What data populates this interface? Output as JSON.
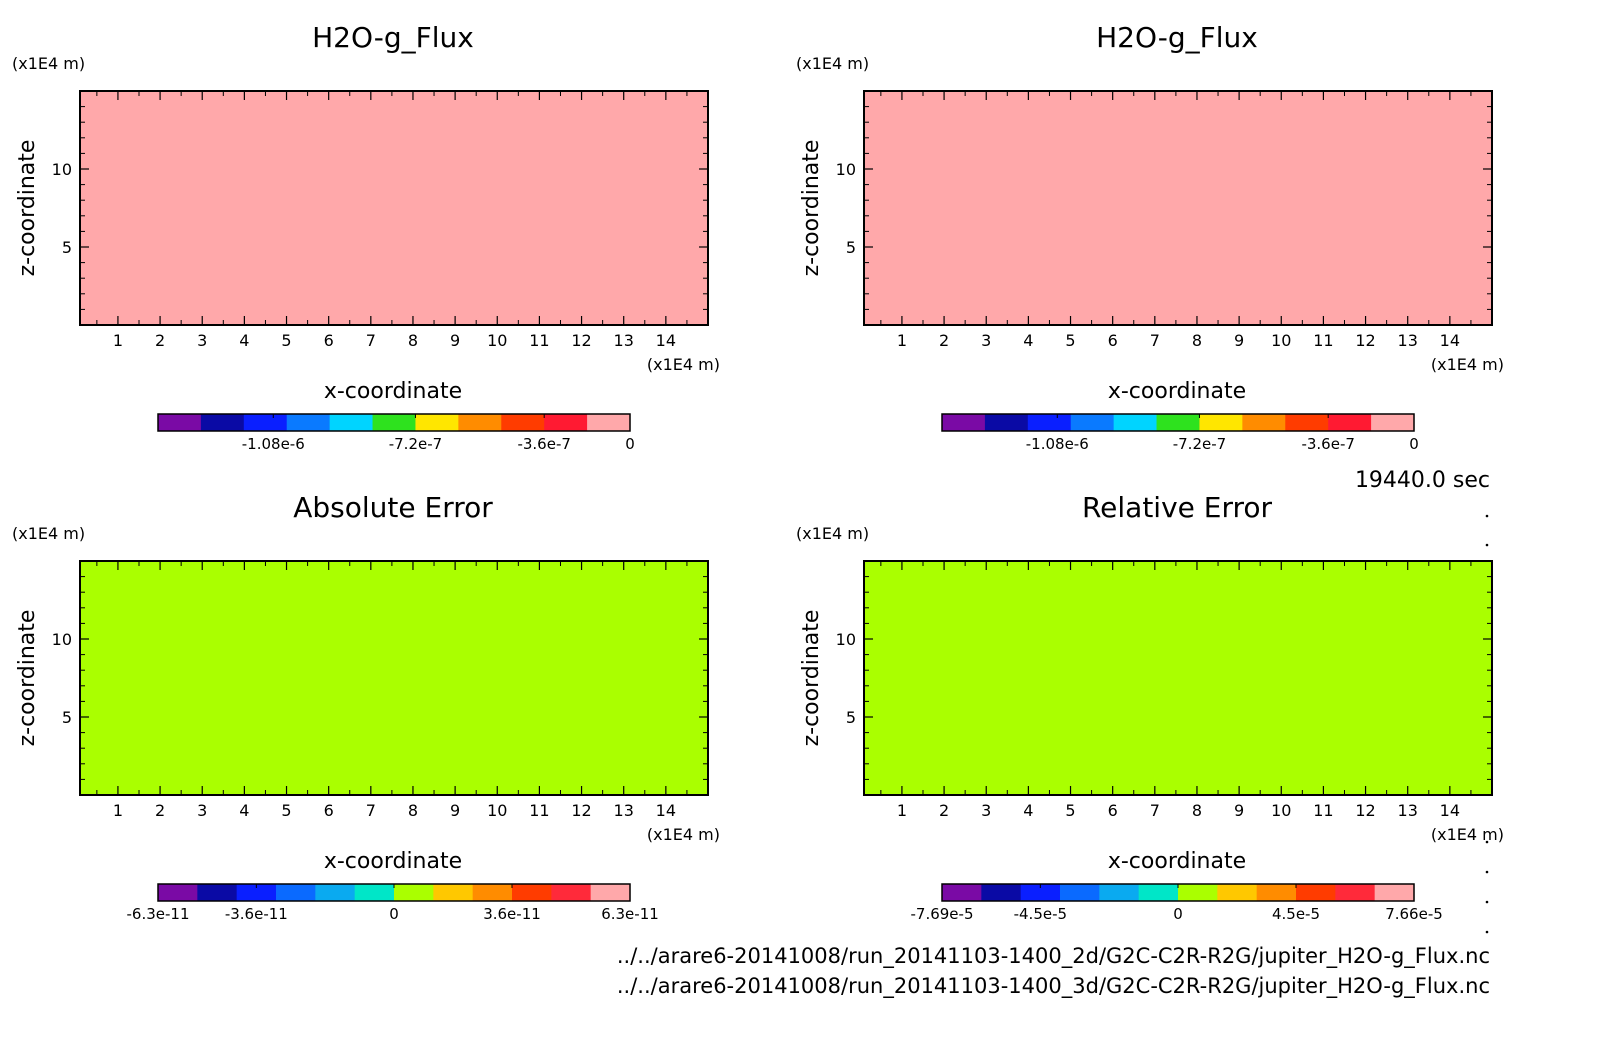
{
  "panels": [
    {
      "title": "H2O-g_Flux",
      "fill_color": "#ffa8aa",
      "y_unit": "(x1E4 m)",
      "x_unit": "(x1E4 m)",
      "ylabel": "z-coordinate",
      "xlabel": "x-coordinate",
      "colorbar": {
        "colors": [
          "#7a0aa5",
          "#0a0aa5",
          "#0a1fff",
          "#0a7aff",
          "#00d4ff",
          "#2ee21e",
          "#ffe600",
          "#ff8c00",
          "#ff3c00",
          "#ff1a32",
          "#ffa8aa"
        ],
        "labels": [
          "-1.08e-6",
          "-7.2e-7",
          "-3.6e-7",
          "0"
        ]
      }
    },
    {
      "title": "H2O-g_Flux",
      "fill_color": "#ffa8aa",
      "y_unit": "(x1E4 m)",
      "x_unit": "(x1E4 m)",
      "ylabel": "z-coordinate",
      "xlabel": "x-coordinate",
      "colorbar": {
        "colors": [
          "#7a0aa5",
          "#0a0aa5",
          "#0a1fff",
          "#0a7aff",
          "#00d4ff",
          "#2ee21e",
          "#ffe600",
          "#ff8c00",
          "#ff3c00",
          "#ff1a32",
          "#ffa8aa"
        ],
        "labels": [
          "-1.08e-6",
          "-7.2e-7",
          "-3.6e-7",
          "0"
        ]
      }
    },
    {
      "title": "Absolute Error",
      "fill_color": "#aaff00",
      "y_unit": "(x1E4 m)",
      "x_unit": "(x1E4 m)",
      "ylabel": "z-coordinate",
      "xlabel": "x-coordinate",
      "colorbar": {
        "colors": [
          "#7a0aa5",
          "#0a0aa5",
          "#0a1fff",
          "#0a6aff",
          "#0aaaf0",
          "#00e6c8",
          "#aaff00",
          "#ffc800",
          "#ff8c00",
          "#ff3c00",
          "#ff2a3a",
          "#ffa8aa"
        ],
        "labels": [
          "-6.3e-11",
          "-3.6e-11",
          "0",
          "3.6e-11",
          "6.3e-11"
        ]
      }
    },
    {
      "title": "Relative Error",
      "fill_color": "#aaff00",
      "y_unit": "(x1E4 m)",
      "x_unit": "(x1E4 m)",
      "ylabel": "z-coordinate",
      "xlabel": "x-coordinate",
      "colorbar": {
        "colors": [
          "#7a0aa5",
          "#0a0aa5",
          "#0a1fff",
          "#0a6aff",
          "#0aaaf0",
          "#00e6c8",
          "#aaff00",
          "#ffc800",
          "#ff8c00",
          "#ff3c00",
          "#ff2a3a",
          "#ffa8aa"
        ],
        "labels": [
          "-7.69e-5",
          "-4.5e-5",
          "0",
          "4.5e-5",
          "7.66e-5"
        ]
      }
    }
  ],
  "time_label": "19440.0 sec",
  "file_paths": [
    "../../arare6-20141008/run_20141103-1400_2d/G2C-C2R-R2G/jupiter_H2O-g_Flux.nc",
    "../../arare6-20141008/run_20141103-1400_3d/G2C-C2R-R2G/jupiter_H2O-g_Flux.nc"
  ],
  "chart_data": [
    {
      "type": "heatmap",
      "title": "H2O-g_Flux",
      "xlabel": "x-coordinate",
      "ylabel": "z-coordinate",
      "x_ticks": [
        1,
        2,
        3,
        4,
        5,
        6,
        7,
        8,
        9,
        10,
        11,
        12,
        13,
        14
      ],
      "y_ticks": [
        5,
        10
      ],
      "xlim": [
        0.1,
        15.0
      ],
      "ylim": [
        0.0,
        15.0
      ],
      "colorbar_ticks": [
        "-1.08e-6",
        "-7.2e-7",
        "-3.6e-7",
        "0"
      ]
    },
    {
      "type": "heatmap",
      "title": "H2O-g_Flux",
      "xlabel": "x-coordinate",
      "ylabel": "z-coordinate",
      "x_ticks": [
        1,
        2,
        3,
        4,
        5,
        6,
        7,
        8,
        9,
        10,
        11,
        12,
        13,
        14
      ],
      "y_ticks": [
        5,
        10
      ],
      "xlim": [
        0.1,
        15.0
      ],
      "ylim": [
        0.0,
        15.0
      ],
      "colorbar_ticks": [
        "-1.08e-6",
        "-7.2e-7",
        "-3.6e-7",
        "0"
      ]
    },
    {
      "type": "heatmap",
      "title": "Absolute Error",
      "xlabel": "x-coordinate",
      "ylabel": "z-coordinate",
      "x_ticks": [
        1,
        2,
        3,
        4,
        5,
        6,
        7,
        8,
        9,
        10,
        11,
        12,
        13,
        14
      ],
      "y_ticks": [
        5,
        10
      ],
      "xlim": [
        0.1,
        15.0
      ],
      "ylim": [
        0.0,
        15.0
      ],
      "colorbar_ticks": [
        "-6.3e-11",
        "-3.6e-11",
        "0",
        "3.6e-11",
        "6.3e-11"
      ]
    },
    {
      "type": "heatmap",
      "title": "Relative Error",
      "xlabel": "x-coordinate",
      "ylabel": "z-coordinate",
      "x_ticks": [
        1,
        2,
        3,
        4,
        5,
        6,
        7,
        8,
        9,
        10,
        11,
        12,
        13,
        14
      ],
      "y_ticks": [
        5,
        10
      ],
      "xlim": [
        0.1,
        15.0
      ],
      "ylim": [
        0.0,
        15.0
      ],
      "colorbar_ticks": [
        "-7.69e-5",
        "-4.5e-5",
        "0",
        "4.5e-5",
        "7.66e-5"
      ]
    }
  ]
}
